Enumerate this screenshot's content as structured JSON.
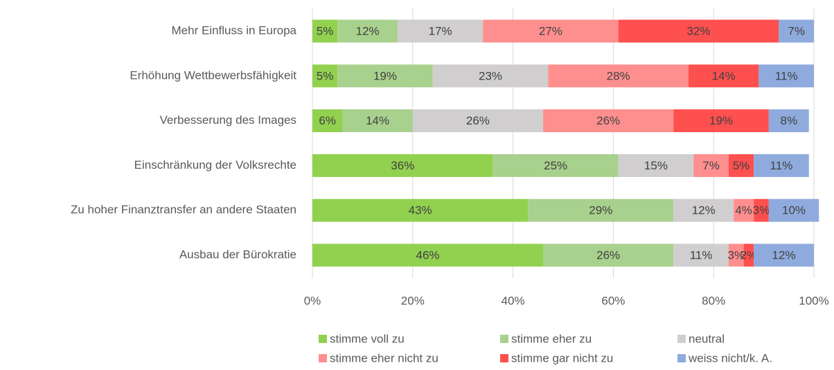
{
  "chart_data": {
    "type": "stacked_bar_horizontal",
    "categories": [
      "Mehr Einfluss in Europa",
      "Erhöhung Wettbewerbsfähigkeit",
      "Verbesserung des Images",
      "Einschränkung der Volksrechte",
      "Zu hoher Finanztransfer an andere Staaten",
      "Ausbau der Bürokratie"
    ],
    "series": [
      {
        "name": "stimme voll zu",
        "color": "#92d050",
        "values": [
          5,
          5,
          6,
          36,
          43,
          46
        ],
        "value_labels": [
          "5%",
          "5%",
          "6%",
          "36%",
          "43%",
          "46%"
        ]
      },
      {
        "name": "stimme eher zu",
        "color": "#a9d18e",
        "values": [
          12,
          19,
          14,
          25,
          29,
          26
        ],
        "value_labels": [
          "12%",
          "19%",
          "14%",
          "25%",
          "29%",
          "26%"
        ]
      },
      {
        "name": "neutral",
        "color": "#d0cece",
        "values": [
          17,
          23,
          26,
          15,
          12,
          11
        ],
        "value_labels": [
          "17%",
          "23%",
          "26%",
          "15%",
          "12%",
          "11%"
        ]
      },
      {
        "name": "stimme eher nicht zu",
        "color": "#ff8f8f",
        "values": [
          27,
          28,
          26,
          7,
          4,
          3
        ],
        "value_labels": [
          "27%",
          "28%",
          "26%",
          "7%",
          "4%",
          "3%"
        ]
      },
      {
        "name": "stimme gar nicht zu",
        "color": "#ff5050",
        "values": [
          32,
          14,
          19,
          5,
          3,
          2
        ],
        "value_labels": [
          "32%",
          "14%",
          "19%",
          "5%",
          "3%",
          "2%"
        ]
      },
      {
        "name": "weiss nicht/k. A.",
        "color": "#8faadc",
        "values": [
          7,
          11,
          8,
          11,
          10,
          12
        ],
        "value_labels": [
          "7%",
          "11%",
          "8%",
          "11%",
          "10%",
          "12%"
        ]
      }
    ],
    "xlim": [
      0,
      100
    ],
    "xticks": [
      {
        "value": 0,
        "label": "0%"
      },
      {
        "value": 20,
        "label": "20%"
      },
      {
        "value": 40,
        "label": "40%"
      },
      {
        "value": 60,
        "label": "60%"
      },
      {
        "value": 80,
        "label": "80%"
      },
      {
        "value": 100,
        "label": "100%"
      }
    ],
    "grid": true,
    "legend": "bottom"
  }
}
